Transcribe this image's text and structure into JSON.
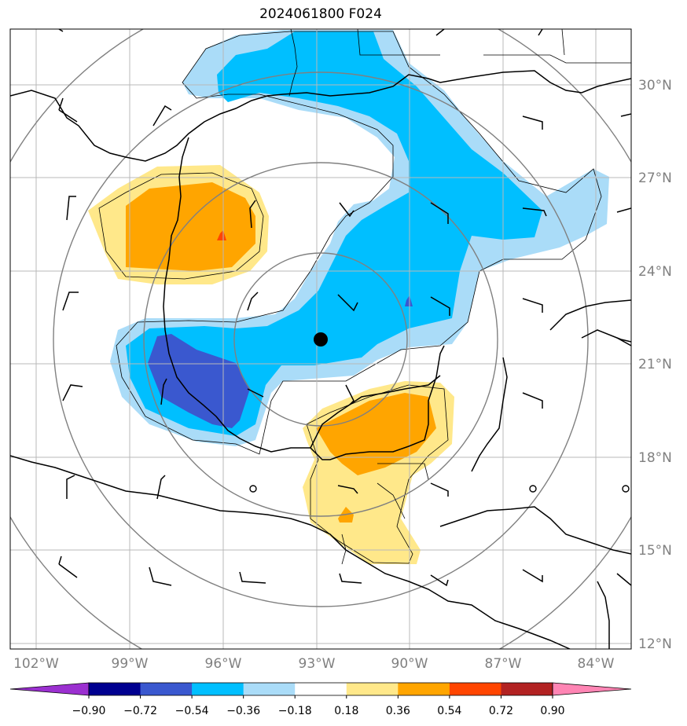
{
  "title": "2024061800 F024",
  "lat_labels": [
    "30°N",
    "27°N",
    "24°N",
    "21°N",
    "18°N",
    "15°N",
    "12°N"
  ],
  "lon_labels": [
    "102°W",
    "99°W",
    "96°W",
    "93°W",
    "90°W",
    "87°W",
    "84°W"
  ],
  "colorbar": {
    "labels": [
      "−0.90",
      "−0.72",
      "−0.54",
      "−0.36",
      "−0.18",
      "0.18",
      "0.36",
      "0.54",
      "0.72",
      "0.90"
    ],
    "colors": [
      "#9b30d0",
      "#000090",
      "#3a58cf",
      "#00bfff",
      "#aadcf8",
      "#ffffff",
      "#ffe88a",
      "#ffa500",
      "#ff4500",
      "#b22222",
      "#ff85b4"
    ]
  },
  "colors": {
    "pos_light": "#ffe88a",
    "pos_mid": "#ffa500",
    "pos_high": "#ff4500",
    "neg_light": "#aadcf8",
    "neg_mid": "#00bfff",
    "neg_high": "#3a58cf"
  }
}
